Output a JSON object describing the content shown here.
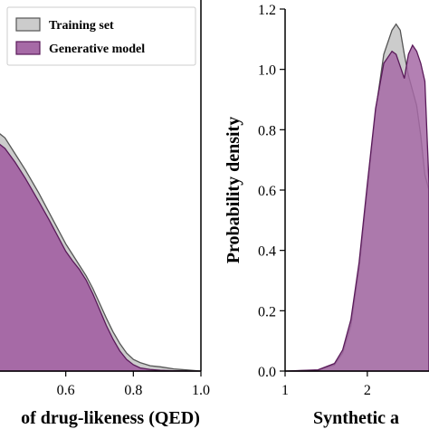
{
  "colors": {
    "training": "#cccccc",
    "training_edge": "#555555",
    "generative": "#a66aa6",
    "generative_light": "#c9a0c9",
    "generative_edge": "#5a1a5a"
  },
  "chart_data": [
    {
      "type": "area",
      "xlabel": "of drug-likeness (QED)",
      "ylabel": "",
      "xlim": [
        0.4,
        1.0
      ],
      "ylim": [
        0,
        3.5
      ],
      "xticks": [
        0.6,
        0.8,
        1.0
      ],
      "xtick_labels": [
        "0.6",
        "0.8",
        "1.0"
      ],
      "legend": {
        "position": "top-right",
        "entries": [
          "Training set",
          "Generative model"
        ]
      },
      "series": [
        {
          "name": "Training set",
          "x": [
            0.4,
            0.42,
            0.45,
            0.48,
            0.5,
            0.52,
            0.55,
            0.58,
            0.6,
            0.62,
            0.64,
            0.66,
            0.68,
            0.7,
            0.72,
            0.74,
            0.76,
            0.78,
            0.8,
            0.82,
            0.85,
            0.88,
            0.92,
            0.96,
            1.0
          ],
          "y": [
            2.25,
            2.2,
            2.05,
            1.9,
            1.79,
            1.68,
            1.5,
            1.32,
            1.2,
            1.1,
            1.0,
            0.9,
            0.78,
            0.64,
            0.5,
            0.37,
            0.26,
            0.17,
            0.11,
            0.08,
            0.05,
            0.04,
            0.02,
            0.01,
            0.0
          ]
        },
        {
          "name": "Generative model",
          "x": [
            0.4,
            0.42,
            0.45,
            0.48,
            0.5,
            0.52,
            0.55,
            0.58,
            0.6,
            0.62,
            0.64,
            0.66,
            0.68,
            0.7,
            0.72,
            0.74,
            0.76,
            0.78,
            0.8,
            0.82,
            0.85,
            0.88,
            0.92,
            0.96,
            1.0
          ],
          "y": [
            2.15,
            2.1,
            1.97,
            1.82,
            1.71,
            1.6,
            1.43,
            1.25,
            1.13,
            1.04,
            0.96,
            0.86,
            0.73,
            0.58,
            0.43,
            0.3,
            0.19,
            0.11,
            0.06,
            0.03,
            0.015,
            0.007,
            0.003,
            0.001,
            0.0
          ]
        }
      ]
    },
    {
      "type": "area",
      "xlabel": "Synthetic a",
      "ylabel": "Probability density",
      "xlim": [
        1,
        2.75
      ],
      "ylim": [
        0,
        1.2
      ],
      "xticks": [
        1,
        2
      ],
      "xtick_labels": [
        "1",
        "2"
      ],
      "yticks": [
        0,
        0.2,
        0.4,
        0.6,
        0.8,
        1.0,
        1.2
      ],
      "ytick_labels": [
        "0.0",
        "0.2",
        "0.4",
        "0.6",
        "0.8",
        "1.0",
        "1.2"
      ],
      "series": [
        {
          "name": "Training set",
          "x": [
            1.0,
            1.4,
            1.6,
            1.7,
            1.8,
            1.9,
            2.0,
            2.1,
            2.2,
            2.3,
            2.35,
            2.4,
            2.45,
            2.5,
            2.55,
            2.6,
            2.65,
            2.7,
            2.75
          ],
          "y": [
            0.0,
            0.003,
            0.02,
            0.06,
            0.15,
            0.34,
            0.6,
            0.86,
            1.05,
            1.13,
            1.15,
            1.13,
            1.05,
            0.98,
            0.93,
            0.88,
            0.78,
            0.65,
            0.6
          ]
        },
        {
          "name": "Generative model",
          "x": [
            1.0,
            1.4,
            1.6,
            1.7,
            1.8,
            1.9,
            2.0,
            2.1,
            2.2,
            2.3,
            2.35,
            2.4,
            2.45,
            2.5,
            2.55,
            2.6,
            2.65,
            2.7,
            2.75
          ],
          "y": [
            0.0,
            0.004,
            0.025,
            0.07,
            0.17,
            0.36,
            0.62,
            0.87,
            1.02,
            1.06,
            1.05,
            1.01,
            0.97,
            1.05,
            1.08,
            1.06,
            1.02,
            0.96,
            0.62
          ]
        }
      ]
    }
  ]
}
